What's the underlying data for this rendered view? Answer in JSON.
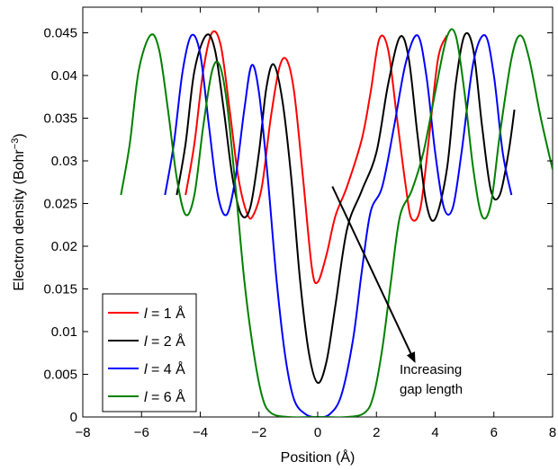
{
  "chart_data": {
    "type": "line",
    "xlabel": "Position (Å)",
    "ylabel": "Electron density (Bohr^-3)",
    "ylabel_base": "Electron density (Bohr",
    "ylabel_sup": "−3",
    "ylabel_close": ")",
    "xlim": [
      -8,
      8
    ],
    "ylim": [
      0,
      0.048
    ],
    "x_ticks": [
      -8,
      -6,
      -4,
      -2,
      0,
      2,
      4,
      6,
      8
    ],
    "x_tick_labels": [
      "−8",
      "−6",
      "−4",
      "−2",
      "0",
      "2",
      "4",
      "6",
      "8"
    ],
    "y_ticks": [
      0,
      0.005,
      0.01,
      0.015,
      0.02,
      0.025,
      0.03,
      0.035,
      0.04,
      0.045
    ],
    "y_tick_labels": [
      "0",
      "0.005",
      "0.01",
      "0.015",
      "0.02",
      "0.025",
      "0.03",
      "0.035",
      "0.04",
      "0.045"
    ],
    "grid": false,
    "legend_position": "lower-left",
    "series": [
      {
        "name": "l = 1 Å",
        "label_var": "l",
        "label_rest": " = 1 Å",
        "color": "#ff0000",
        "points": [
          [
            -4.5,
            0.026
          ],
          [
            -4.2,
            0.032
          ],
          [
            -3.9,
            0.0405
          ],
          [
            -3.6,
            0.045
          ],
          [
            -3.3,
            0.0435
          ],
          [
            -3.0,
            0.036
          ],
          [
            -2.7,
            0.028
          ],
          [
            -2.4,
            0.0238
          ],
          [
            -2.2,
            0.0236
          ],
          [
            -1.9,
            0.027
          ],
          [
            -1.6,
            0.035
          ],
          [
            -1.3,
            0.041
          ],
          [
            -1.05,
            0.0418
          ],
          [
            -0.8,
            0.038
          ],
          [
            -0.5,
            0.028
          ],
          [
            -0.2,
            0.0175
          ],
          [
            0.0,
            0.0158
          ],
          [
            0.3,
            0.019
          ],
          [
            0.6,
            0.0235
          ],
          [
            1.0,
            0.027
          ],
          [
            1.5,
            0.0325
          ],
          [
            1.8,
            0.038
          ],
          [
            2.1,
            0.0443
          ],
          [
            2.4,
            0.043
          ],
          [
            2.7,
            0.035
          ],
          [
            3.0,
            0.027
          ],
          [
            3.2,
            0.0232
          ],
          [
            3.5,
            0.0245
          ],
          [
            3.8,
            0.033
          ],
          [
            4.1,
            0.042
          ],
          [
            4.4,
            0.0447
          ]
        ]
      },
      {
        "name": "l = 2 Å",
        "label_var": "l",
        "label_rest": " = 2 Å",
        "color": "#000000",
        "points": [
          [
            -4.8,
            0.026
          ],
          [
            -4.5,
            0.032
          ],
          [
            -4.2,
            0.0405
          ],
          [
            -3.8,
            0.0447
          ],
          [
            -3.5,
            0.043
          ],
          [
            -3.2,
            0.036
          ],
          [
            -2.9,
            0.028
          ],
          [
            -2.6,
            0.0237
          ],
          [
            -2.3,
            0.0245
          ],
          [
            -2.0,
            0.031
          ],
          [
            -1.75,
            0.0385
          ],
          [
            -1.5,
            0.0413
          ],
          [
            -1.2,
            0.037
          ],
          [
            -0.9,
            0.028
          ],
          [
            -0.6,
            0.016
          ],
          [
            -0.3,
            0.0075
          ],
          [
            0.0,
            0.004
          ],
          [
            0.3,
            0.0065
          ],
          [
            0.6,
            0.013
          ],
          [
            1.0,
            0.022
          ],
          [
            1.5,
            0.0265
          ],
          [
            2.0,
            0.031
          ],
          [
            2.4,
            0.039
          ],
          [
            2.8,
            0.0445
          ],
          [
            3.1,
            0.042
          ],
          [
            3.4,
            0.033
          ],
          [
            3.7,
            0.025
          ],
          [
            4.0,
            0.0232
          ],
          [
            4.4,
            0.029
          ],
          [
            4.7,
            0.039
          ],
          [
            5.0,
            0.0447
          ],
          [
            5.3,
            0.043
          ],
          [
            5.6,
            0.034
          ],
          [
            5.9,
            0.0265
          ],
          [
            6.2,
            0.026
          ],
          [
            6.5,
            0.031
          ],
          [
            6.7,
            0.036
          ]
        ]
      },
      {
        "name": "l = 4 Å",
        "label_var": "l",
        "label_rest": " = 4 Å",
        "color": "#0000ff",
        "points": [
          [
            -5.2,
            0.026
          ],
          [
            -4.9,
            0.032
          ],
          [
            -4.6,
            0.0405
          ],
          [
            -4.3,
            0.0447
          ],
          [
            -4.0,
            0.0425
          ],
          [
            -3.7,
            0.034
          ],
          [
            -3.4,
            0.026
          ],
          [
            -3.1,
            0.0237
          ],
          [
            -2.8,
            0.028
          ],
          [
            -2.5,
            0.036
          ],
          [
            -2.25,
            0.0412
          ],
          [
            -2.0,
            0.038
          ],
          [
            -1.7,
            0.028
          ],
          [
            -1.4,
            0.016
          ],
          [
            -1.1,
            0.007
          ],
          [
            -0.8,
            0.002
          ],
          [
            -0.4,
            0.0003
          ],
          [
            0.0,
            0.0
          ],
          [
            0.4,
            0.0003
          ],
          [
            0.8,
            0.0025
          ],
          [
            1.2,
            0.009
          ],
          [
            1.5,
            0.017
          ],
          [
            1.8,
            0.024
          ],
          [
            2.2,
            0.027
          ],
          [
            2.6,
            0.034
          ],
          [
            3.0,
            0.0415
          ],
          [
            3.4,
            0.0447
          ],
          [
            3.7,
            0.04
          ],
          [
            4.0,
            0.031
          ],
          [
            4.3,
            0.0245
          ],
          [
            4.6,
            0.0245
          ],
          [
            4.9,
            0.031
          ],
          [
            5.3,
            0.0415
          ],
          [
            5.7,
            0.0447
          ],
          [
            6.0,
            0.04
          ],
          [
            6.3,
            0.031
          ],
          [
            6.6,
            0.026
          ]
        ]
      },
      {
        "name": "l = 6 Å",
        "label_var": "l",
        "label_rest": " = 6 Å",
        "color": "#008000",
        "points": [
          [
            -6.7,
            0.026
          ],
          [
            -6.4,
            0.032
          ],
          [
            -6.1,
            0.0405
          ],
          [
            -5.7,
            0.0447
          ],
          [
            -5.4,
            0.043
          ],
          [
            -5.1,
            0.036
          ],
          [
            -4.8,
            0.028
          ],
          [
            -4.5,
            0.0237
          ],
          [
            -4.2,
            0.026
          ],
          [
            -3.9,
            0.034
          ],
          [
            -3.6,
            0.0405
          ],
          [
            -3.35,
            0.0413
          ],
          [
            -3.1,
            0.037
          ],
          [
            -2.8,
            0.027
          ],
          [
            -2.5,
            0.016
          ],
          [
            -2.2,
            0.008
          ],
          [
            -1.9,
            0.0025
          ],
          [
            -1.6,
            0.0005
          ],
          [
            -1.0,
            0.0
          ],
          [
            0.0,
            0.0
          ],
          [
            1.0,
            0.0
          ],
          [
            1.6,
            0.0005
          ],
          [
            1.9,
            0.0025
          ],
          [
            2.2,
            0.008
          ],
          [
            2.5,
            0.016
          ],
          [
            2.8,
            0.0235
          ],
          [
            3.2,
            0.0265
          ],
          [
            3.6,
            0.031
          ],
          [
            4.0,
            0.038
          ],
          [
            4.4,
            0.0445
          ],
          [
            4.7,
            0.0447
          ],
          [
            5.0,
            0.038
          ],
          [
            5.3,
            0.029
          ],
          [
            5.6,
            0.0235
          ],
          [
            5.9,
            0.025
          ],
          [
            6.2,
            0.033
          ],
          [
            6.6,
            0.042
          ],
          [
            6.9,
            0.0447
          ],
          [
            7.2,
            0.042
          ],
          [
            7.6,
            0.035
          ],
          [
            8.0,
            0.029
          ]
        ]
      }
    ],
    "annotation": {
      "line1": "Increasing",
      "line2": "gap length",
      "arrow_from": [
        0.5,
        0.027
      ],
      "arrow_to": [
        3.3,
        0.0065
      ]
    }
  }
}
